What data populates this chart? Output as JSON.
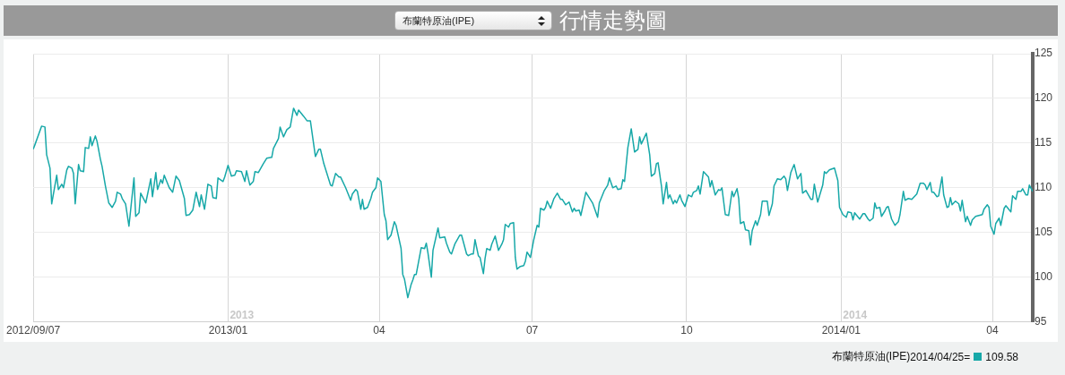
{
  "chart_data": {
    "type": "line",
    "title": "行情走勢圖",
    "subtitle": "布蘭特原油(IPE)",
    "xlim": [
      "2012-09-07",
      "2014-04-25"
    ],
    "xticks": [
      {
        "value": "2012-09-07",
        "label": "2012/09/07"
      },
      {
        "value": "2013-01-01",
        "label": "2013/01"
      },
      {
        "value": "2013-04-01",
        "label": "04"
      },
      {
        "value": "2013-07-01",
        "label": "07"
      },
      {
        "value": "2013-10-01",
        "label": "10"
      },
      {
        "value": "2014-01-01",
        "label": "2014/01"
      },
      {
        "value": "2014-04-01",
        "label": "04"
      }
    ],
    "ylim": [
      95,
      125
    ],
    "yticks": [
      95,
      100,
      105,
      110,
      115,
      120,
      125
    ],
    "grid": true,
    "legend": "bottom right",
    "marker": "none",
    "line_style": "solid",
    "annotations": [
      "2013",
      "2014",
      "2014/04/25=",
      "109.58"
    ],
    "series": [
      {
        "name": "布蘭特原油(IPE)",
        "color": "#17a8a8",
        "x": [
          "2012-09-07",
          "2012-09-08",
          "2012-09-12",
          "2012-09-14",
          "2012-09-15",
          "2012-09-17",
          "2012-09-18",
          "2012-09-21",
          "2012-09-22",
          "2012-09-24",
          "2012-09-25",
          "2012-09-27",
          "2012-09-28",
          "2012-09-30",
          "2012-10-01",
          "2012-10-02",
          "2012-10-04",
          "2012-10-05",
          "2012-10-07",
          "2012-10-08",
          "2012-10-10",
          "2012-10-11",
          "2012-10-12",
          "2012-10-14",
          "2012-10-15",
          "2012-10-17",
          "2012-10-18",
          "2012-10-20",
          "2012-10-22",
          "2012-10-24",
          "2012-10-26",
          "2012-10-27",
          "2012-10-29",
          "2012-10-30",
          "2012-11-01",
          "2012-11-03",
          "2012-11-06",
          "2012-11-07",
          "2012-11-09",
          "2012-11-10",
          "2012-11-13",
          "2012-11-16",
          "2012-11-17",
          "2012-11-19",
          "2012-11-20",
          "2012-11-22",
          "2012-11-23",
          "2012-11-24",
          "2012-11-27",
          "2012-11-29",
          "2012-12-01",
          "2012-12-03",
          "2012-12-06",
          "2012-12-07",
          "2012-12-09",
          "2012-12-11",
          "2012-12-13",
          "2012-12-15",
          "2012-12-16",
          "2012-12-18",
          "2012-12-20",
          "2012-12-22",
          "2012-12-23",
          "2012-12-25",
          "2012-12-26",
          "2012-12-29",
          "2012-12-30",
          "2013-01-01",
          "2013-01-03",
          "2013-01-05",
          "2013-01-06",
          "2013-01-09",
          "2013-01-11",
          "2013-01-12",
          "2013-01-14",
          "2013-01-16",
          "2013-01-17",
          "2013-01-19",
          "2013-01-22",
          "2013-01-24",
          "2013-01-27",
          "2013-01-28",
          "2013-01-31",
          "2013-02-01",
          "2013-02-03",
          "2013-02-05",
          "2013-02-07",
          "2013-02-09",
          "2013-02-11",
          "2013-02-12",
          "2013-02-15",
          "2013-02-17",
          "2013-02-19",
          "2013-02-22",
          "2013-02-24",
          "2013-02-25",
          "2013-02-27",
          "2013-03-03",
          "2013-03-04",
          "2013-03-06",
          "2013-03-08",
          "2013-03-09",
          "2013-03-12",
          "2013-03-15",
          "2013-03-16",
          "2013-03-18",
          "2013-03-19",
          "2013-03-21",
          "2013-03-22",
          "2013-03-23",
          "2013-03-25",
          "2013-03-27",
          "2013-03-28",
          "2013-03-30",
          "2013-03-31",
          "2013-04-02",
          "2013-04-04",
          "2013-04-05",
          "2013-04-06",
          "2013-04-08",
          "2013-04-10",
          "2013-04-11",
          "2013-04-14",
          "2013-04-15",
          "2013-04-16",
          "2013-04-18",
          "2013-04-20",
          "2013-04-21",
          "2013-04-22",
          "2013-04-23",
          "2013-04-26",
          "2013-04-28",
          "2013-04-29",
          "2013-04-30",
          "2013-05-02",
          "2013-05-03",
          "2013-05-06",
          "2013-05-07",
          "2013-05-10",
          "2013-05-11",
          "2013-05-13",
          "2013-05-14",
          "2013-05-16",
          "2013-05-19",
          "2013-05-20",
          "2013-05-23",
          "2013-05-24",
          "2013-05-26",
          "2013-05-27",
          "2013-05-28",
          "2013-05-30",
          "2013-05-31",
          "2013-06-02",
          "2013-06-03",
          "2013-06-04",
          "2013-06-06",
          "2013-06-07",
          "2013-06-09",
          "2013-06-10",
          "2013-06-11",
          "2013-06-13",
          "2013-06-14",
          "2013-06-15",
          "2013-06-17",
          "2013-06-18",
          "2013-06-20",
          "2013-06-21",
          "2013-06-22",
          "2013-06-24",
          "2013-06-26",
          "2013-06-27",
          "2013-06-28",
          "2013-06-30",
          "2013-07-02",
          "2013-07-04",
          "2013-07-05",
          "2013-07-06",
          "2013-07-08",
          "2013-07-09",
          "2013-07-10",
          "2013-07-12",
          "2013-07-14",
          "2013-07-16",
          "2013-07-18",
          "2013-07-19",
          "2013-07-21",
          "2013-07-23",
          "2013-07-25",
          "2013-07-26",
          "2013-07-27",
          "2013-07-29",
          "2013-07-30",
          "2013-08-02",
          "2013-08-06",
          "2013-08-09",
          "2013-08-10",
          "2013-08-13",
          "2013-08-15",
          "2013-08-16",
          "2013-08-18",
          "2013-08-20",
          "2013-08-21",
          "2013-08-23",
          "2013-08-24",
          "2013-08-25",
          "2013-08-27",
          "2013-08-29",
          "2013-08-31",
          "2013-09-02",
          "2013-09-03",
          "2013-09-04",
          "2013-09-07",
          "2013-09-09",
          "2013-09-10",
          "2013-09-12",
          "2013-09-13",
          "2013-09-14",
          "2013-09-16",
          "2013-09-17",
          "2013-09-19",
          "2013-09-20",
          "2013-09-21",
          "2013-09-23",
          "2013-09-24",
          "2013-09-25",
          "2013-09-27",
          "2013-09-28",
          "2013-09-30",
          "2013-10-02",
          "2013-10-04",
          "2013-10-05",
          "2013-10-07",
          "2013-10-08",
          "2013-10-09",
          "2013-10-11",
          "2013-10-14",
          "2013-10-15",
          "2013-10-16",
          "2013-10-18",
          "2013-10-20",
          "2013-10-21",
          "2013-10-22",
          "2013-10-24",
          "2013-10-26",
          "2013-10-28",
          "2013-10-29",
          "2013-10-31",
          "2013-11-01",
          "2013-11-02",
          "2013-11-04",
          "2013-11-05",
          "2013-11-07",
          "2013-11-08",
          "2013-11-09",
          "2013-11-11",
          "2013-11-12",
          "2013-11-14",
          "2013-11-15",
          "2013-11-18",
          "2013-11-19",
          "2013-11-21",
          "2013-11-22",
          "2013-11-24",
          "2013-11-26",
          "2013-11-28",
          "2013-11-29",
          "2013-11-30",
          "2013-12-02",
          "2013-12-04",
          "2013-12-06",
          "2013-12-08",
          "2013-12-09",
          "2013-12-11",
          "2013-12-14",
          "2013-12-15",
          "2013-12-16",
          "2013-12-18",
          "2013-12-21",
          "2013-12-22",
          "2013-12-23",
          "2013-12-25",
          "2013-12-28",
          "2013-12-30",
          "2013-12-31",
          "2014-01-02",
          "2014-01-04",
          "2014-01-05",
          "2014-01-07",
          "2014-01-08",
          "2014-01-09",
          "2014-01-12",
          "2014-01-14",
          "2014-01-15",
          "2014-01-17",
          "2014-01-18",
          "2014-01-20",
          "2014-01-21",
          "2014-01-22",
          "2014-01-24",
          "2014-01-25",
          "2014-01-27",
          "2014-01-28",
          "2014-01-29",
          "2014-01-31",
          "2014-02-02",
          "2014-02-04",
          "2014-02-05",
          "2014-02-07",
          "2014-02-08",
          "2014-02-10",
          "2014-02-12",
          "2014-02-15",
          "2014-02-17",
          "2014-02-19",
          "2014-02-20",
          "2014-02-21",
          "2014-02-23",
          "2014-02-24",
          "2014-02-25",
          "2014-02-27",
          "2014-02-28",
          "2014-03-02",
          "2014-03-03",
          "2014-03-05",
          "2014-03-06",
          "2014-03-07",
          "2014-03-08",
          "2014-03-10",
          "2014-03-12",
          "2014-03-13",
          "2014-03-14",
          "2014-03-16",
          "2014-03-17",
          "2014-03-19",
          "2014-03-20",
          "2014-03-22",
          "2014-03-24",
          "2014-03-26",
          "2014-03-27",
          "2014-03-29",
          "2014-03-30",
          "2014-03-31",
          "2014-04-02",
          "2014-04-03",
          "2014-04-05",
          "2014-04-06",
          "2014-04-08",
          "2014-04-09",
          "2014-04-12",
          "2014-04-13",
          "2014-04-15",
          "2014-04-16",
          "2014-04-18",
          "2014-04-19",
          "2014-04-21",
          "2014-04-22",
          "2014-04-23",
          "2014-04-25"
        ],
        "values": [
          114.3,
          114.8,
          116.9,
          116.8,
          113.7,
          112.2,
          108.2,
          111.4,
          109.8,
          110.4,
          110,
          112,
          112.4,
          112.2,
          111.6,
          108.2,
          112.6,
          111.9,
          111.8,
          114.5,
          114.4,
          115.7,
          114.7,
          115.8,
          115.2,
          113.2,
          112.4,
          110.2,
          108.3,
          107.8,
          108.5,
          109.5,
          109.3,
          108.8,
          108.2,
          105.7,
          111.1,
          106.8,
          107.2,
          109.4,
          108.3,
          111,
          109,
          111.7,
          109.8,
          110.9,
          110.5,
          111.4,
          110,
          109.5,
          111.3,
          110.8,
          108.8,
          106.9,
          107,
          107.5,
          109.5,
          107.9,
          109.2,
          107.6,
          110.4,
          110.2,
          108.9,
          108.8,
          111.1,
          110.7,
          111.2,
          112.5,
          111.3,
          111.4,
          111.9,
          111.8,
          110.7,
          111.9,
          110.3,
          110.7,
          111.8,
          111.7,
          112.7,
          113.3,
          113.4,
          114.4,
          115.5,
          116.8,
          115.7,
          116.5,
          116.8,
          118.9,
          118.1,
          118.7,
          118,
          117.5,
          117.5,
          113.5,
          114.3,
          114.3,
          112.7,
          110.3,
          110.2,
          111.6,
          111.2,
          111.2,
          110,
          108.6,
          109.3,
          109.8,
          109.6,
          107.6,
          108.7,
          107.6,
          107.8,
          108.8,
          109.5,
          110,
          111.1,
          110.7,
          107,
          106.3,
          104.2,
          104.7,
          106.2,
          105.8,
          103.2,
          100.3,
          99.8,
          97.7,
          99.2,
          99.7,
          100.3,
          100.3,
          103.3,
          103.2,
          103.8,
          102.7,
          100,
          103,
          105.5,
          104.4,
          104.5,
          103.8,
          102.8,
          102.6,
          103.7,
          104.7,
          104.7,
          102.6,
          102.4,
          102.6,
          102.6,
          104.2,
          102.4,
          102.2,
          100.4,
          102.1,
          103.2,
          103,
          103.7,
          104.6,
          103.8,
          103,
          103.7,
          104.2,
          105.9,
          105.6,
          106,
          106.1,
          102.2,
          100.9,
          101.2,
          101.3,
          101.8,
          102.8,
          102.2,
          104.2,
          105.8,
          105.6,
          107.7,
          107.5,
          107.8,
          108.5,
          107.7,
          108.8,
          109.4,
          108.7,
          108.7,
          108.1,
          108.4,
          107.3,
          107.7,
          107.4,
          107.5,
          106.9,
          109.5,
          108.3,
          106.7,
          108.3,
          109.7,
          110.3,
          111.1,
          110,
          110.2,
          109.8,
          109.9,
          110.9,
          110.7,
          114.5,
          116.6,
          114,
          114.3,
          115.7,
          114.9,
          116.1,
          113.7,
          111.3,
          111.6,
          112.7,
          112.8,
          110.2,
          108.2,
          110.6,
          108.8,
          109.2,
          108.2,
          108.6,
          108.3,
          109.2,
          108.6,
          107.9,
          109.2,
          109,
          109.5,
          109.7,
          110.2,
          109.3,
          111.8,
          111.2,
          110.1,
          110.8,
          109.2,
          109.8,
          109.7,
          110,
          107,
          106.9,
          109.6,
          109,
          109.9,
          108.8,
          106,
          106.2,
          105.3,
          105.2,
          103.6,
          105.2,
          106.3,
          105.8,
          107,
          108.5,
          108.5,
          106.9,
          108.2,
          110.2,
          111,
          110.9,
          111.3,
          111,
          109.7,
          111.7,
          112.6,
          111,
          111.6,
          109.4,
          109.7,
          108.7,
          108.7,
          110.4,
          108.4,
          110.3,
          111.8,
          111.6,
          112,
          112.2,
          110.8,
          107.8,
          107,
          106.7,
          107.3,
          107.2,
          106.4,
          107.2,
          106.5,
          107.1,
          107.1,
          106.5,
          106.3,
          106.6,
          108.3,
          107.7,
          107.8,
          106.8,
          107.4,
          107.8,
          107.9,
          106.5,
          105.8,
          106.2,
          107,
          109.6,
          108.6,
          108.8,
          108.7,
          109.3,
          110.5,
          110.5,
          110.3,
          109.8,
          110.6,
          109.5,
          109.5,
          109,
          109.1,
          111.2,
          109.2,
          107.8,
          107.9,
          108.9,
          108.1,
          108.5,
          108.2,
          107.4,
          108.6,
          106.2,
          106.8,
          105.8,
          106.4,
          106.8,
          106.9,
          107,
          107.6,
          108.1,
          107.8,
          105.7,
          104.8,
          106,
          106.6,
          105.8,
          107.7,
          108,
          107.3,
          109.1,
          108.7,
          109.6,
          109.6,
          109.9,
          109.2,
          109.2,
          110.3,
          109.58
        ]
      }
    ]
  }
}
